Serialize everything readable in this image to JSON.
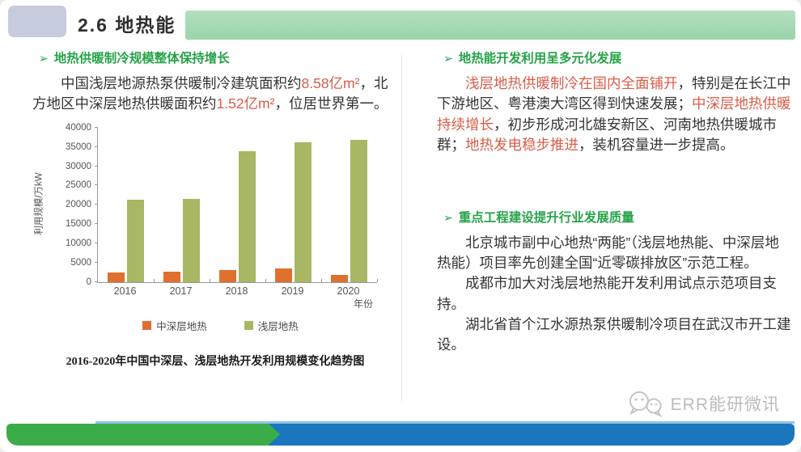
{
  "header": {
    "title": "2.6 地热能"
  },
  "left": {
    "arrow": "➢",
    "heading": "地热供暖制冷规模整体保持增长",
    "paragraph_segments": [
      {
        "text": "中国浅层地源热泵供暖制冷建筑面积约"
      },
      {
        "text": "8.58亿m²",
        "em": true
      },
      {
        "text": "，北方地区中深层地热供暖面积约"
      },
      {
        "text": "1.52亿m²",
        "em": true
      },
      {
        "text": "，位居世界第一。"
      }
    ]
  },
  "chart_data": {
    "type": "bar",
    "title": "2016-2020年中国中深层、浅层地热开发利用规模变化趋势图",
    "categories": [
      "2016",
      "2017",
      "2018",
      "2019",
      "2020"
    ],
    "series": [
      {
        "name": "中深层地热",
        "color": "#e0702f",
        "values": [
          2500,
          2700,
          3000,
          3600,
          1900
        ]
      },
      {
        "name": "浅层地热",
        "color": "#a7b763",
        "values": [
          21400,
          21600,
          33800,
          36200,
          36800
        ]
      }
    ],
    "xlabel": "年份",
    "ylabel": "利用规模/万kW",
    "ylim": [
      0,
      40000
    ],
    "ytick_step": 5000,
    "grid": false,
    "legend_position": "bottom"
  },
  "right": {
    "arrow": "➢",
    "heading1": "地热能开发利用呈多元化发展",
    "para1_segments": [
      {
        "text": "浅层地热供暖制冷在国内全面铺开",
        "em": true
      },
      {
        "text": "，特别是在长江中下游地区、粤港澳大湾区得到快速发展；"
      },
      {
        "text": "中深层地热供暖持续增长",
        "em": true
      },
      {
        "text": "，初步形成河北雄安新区、河南地热供暖城市群；"
      },
      {
        "text": "地热发电稳步推进",
        "em": true
      },
      {
        "text": "，装机容量进一步提高。"
      }
    ],
    "heading2": "重点工程建设提升行业发展质量",
    "para2": "北京城市副中心地热“两能”（浅层地热能、中深层地热能）项目率先创建全国“近零碳排放区”示范工程。",
    "para3": "成都市加大对浅层地热能开发利用试点示范项目支持。",
    "para4": "湖北省首个江水源热泵供暖制冷项目在武汉市开工建设。"
  },
  "footer": {
    "logo_text": "ERR能研微讯"
  },
  "colors": {
    "heading_green": "#25a348",
    "emphasis_red": "#d95c49",
    "header_bar_green": "#a5d9b2",
    "header_box_gray": "#c7cbde",
    "footer_green": "#3bad48",
    "footer_blue": "#1a76bd",
    "footer_light_blue": "#8fc2e6"
  }
}
